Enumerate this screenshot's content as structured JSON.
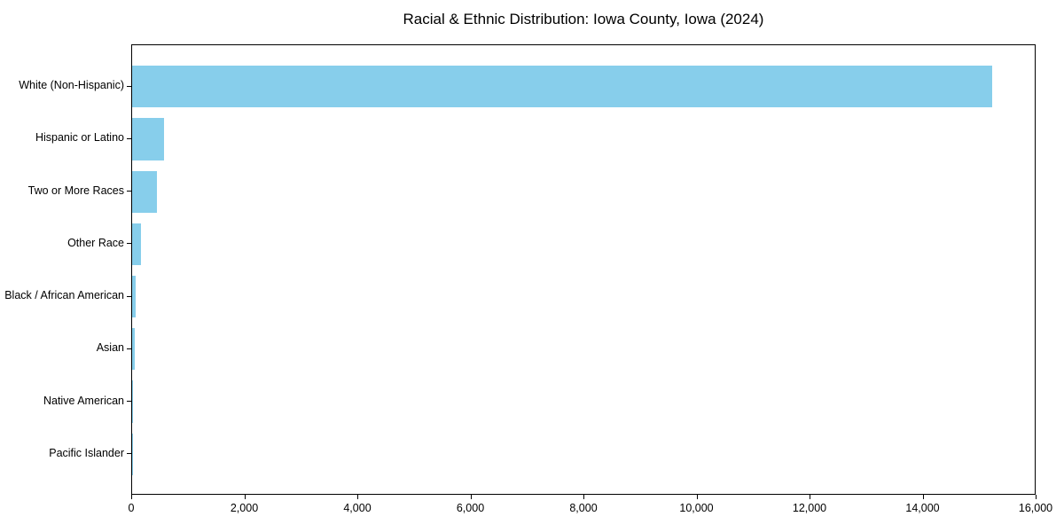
{
  "chart_data": {
    "type": "bar",
    "orientation": "horizontal",
    "title": "Racial & Ethnic Distribution: Iowa County, Iowa (2024)",
    "categories": [
      "White (Non-Hispanic)",
      "Hispanic or Latino",
      "Two or More Races",
      "Other Race",
      "Black / African American",
      "Asian",
      "Native American",
      "Pacific Islander"
    ],
    "values": [
      15250,
      560,
      445,
      160,
      60,
      45,
      15,
      5
    ],
    "xlabel": "",
    "ylabel": "",
    "xlim": [
      0,
      16000
    ],
    "xticks": [
      0,
      2000,
      4000,
      6000,
      8000,
      10000,
      12000,
      14000,
      16000
    ],
    "xtick_labels": [
      "0",
      "2,000",
      "4,000",
      "6,000",
      "8,000",
      "10,000",
      "12,000",
      "14,000",
      "16,000"
    ],
    "bar_color": "#87CEEB",
    "axis_color": "#000000",
    "background_color": "#ffffff",
    "grid": false,
    "legend": null
  }
}
